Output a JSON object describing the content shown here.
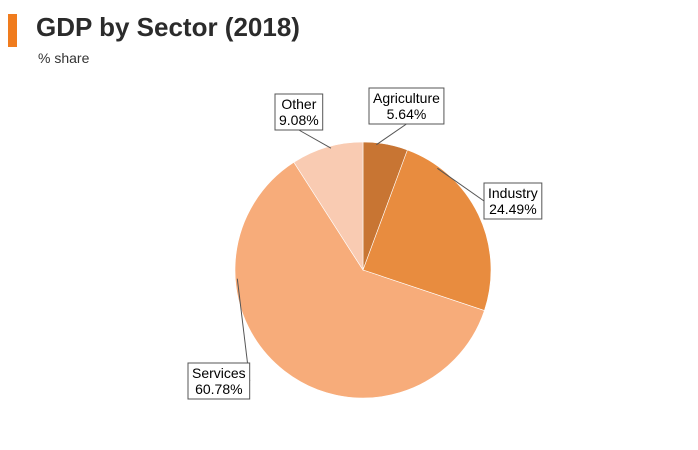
{
  "header": {
    "title": "GDP by Sector (2018)",
    "subtitle": "% share",
    "accent_color": "#f07c1e"
  },
  "chart_data": {
    "type": "pie",
    "title": "GDP by Sector (2018)",
    "subtitle": "% share",
    "start_angle_deg": 0,
    "direction": "clockwise",
    "legend": "none",
    "slices": [
      {
        "label": "Agriculture",
        "value": 5.64,
        "value_label": "5.64%",
        "color": "#c87533"
      },
      {
        "label": "Industry",
        "value": 24.49,
        "value_label": "24.49%",
        "color": "#e88c3f"
      },
      {
        "label": "Services",
        "value": 60.78,
        "value_label": "60.78%",
        "color": "#f7ac7a"
      },
      {
        "label": "Other",
        "value": 9.08,
        "value_label": "9.08%",
        "color": "#f9cbb2"
      }
    ]
  }
}
